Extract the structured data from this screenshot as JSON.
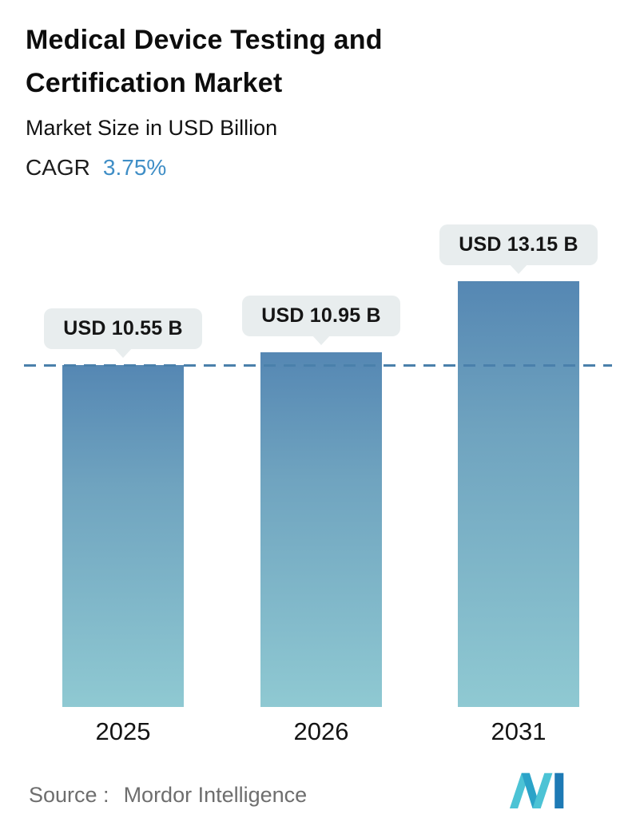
{
  "header": {
    "title": "Medical Device Testing and Certification Market",
    "subtitle": "Market Size in USD Billion",
    "cagr_label": "CAGR",
    "cagr_value": "3.75%"
  },
  "chart_data": {
    "type": "bar",
    "title": "Medical Device Testing and Certification Market",
    "subtitle": "Market Size in USD Billion",
    "cagr": "3.75%",
    "categories": [
      "2025",
      "2026",
      "2031"
    ],
    "values": [
      10.55,
      10.95,
      13.15
    ],
    "value_labels": [
      "USD 10.55 B",
      "USD 10.95 B",
      "USD 13.15 B"
    ],
    "ylabel": "Market Size in USD Billion",
    "ylim": [
      0,
      13.15
    ],
    "grid": false,
    "legend": "none",
    "reference_line": {
      "value": 10.55,
      "style": "dashed",
      "color": "#4a80ab"
    },
    "bar_gradient_top": "#5587b3",
    "bar_gradient_bottom": "#8fc9d2",
    "accent_color": "#3f8ec6",
    "label_pill_color": "#e8edee"
  },
  "footer": {
    "source_label": "Source :",
    "source_value": "Mordor Intelligence",
    "logo": "mordor-intelligence-logo"
  }
}
